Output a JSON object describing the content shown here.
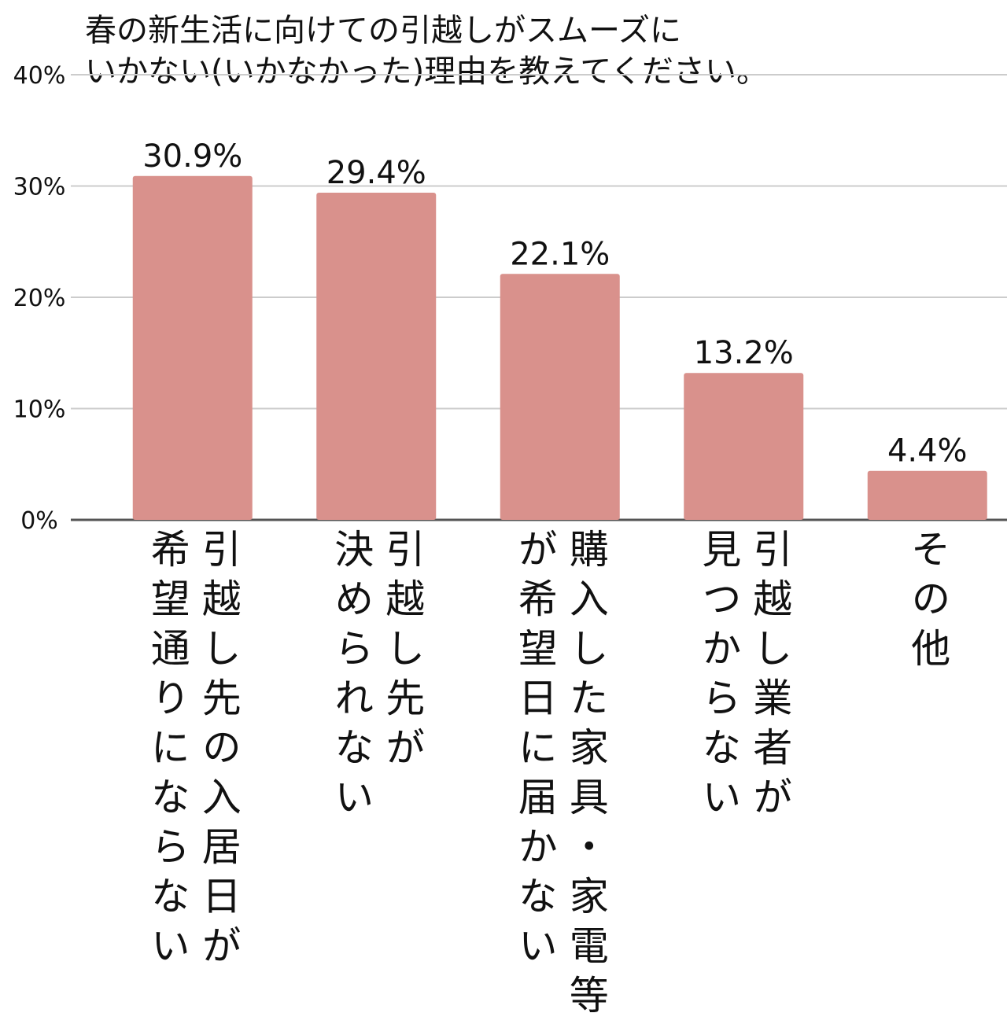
{
  "chart_data": {
    "type": "bar",
    "title": [
      "春の新生活に向けての引越しがスムーズに",
      "いかない(いかなかった)理由を教えてください。"
    ],
    "categories": [
      "引越し先の入居日が\n希望通りにならない",
      "引越し先が\n決められない",
      "購入した家具・家電等\nが希望日に届かない",
      "引越し業者が\n見つからない",
      "その他"
    ],
    "values": [
      30.9,
      29.4,
      22.1,
      13.2,
      4.4
    ],
    "value_labels": [
      "30.9%",
      "29.4%",
      "22.1%",
      "13.2%",
      "4.4%"
    ],
    "color": "#d9918c",
    "ylim": [
      0,
      40
    ],
    "yticks": [
      {
        "value": 0,
        "label": "0%"
      },
      {
        "value": 10,
        "label": "10%"
      },
      {
        "value": 20,
        "label": "20%"
      },
      {
        "value": 30,
        "label": "30%"
      },
      {
        "value": 40,
        "label": "40%"
      }
    ],
    "grid": true
  }
}
